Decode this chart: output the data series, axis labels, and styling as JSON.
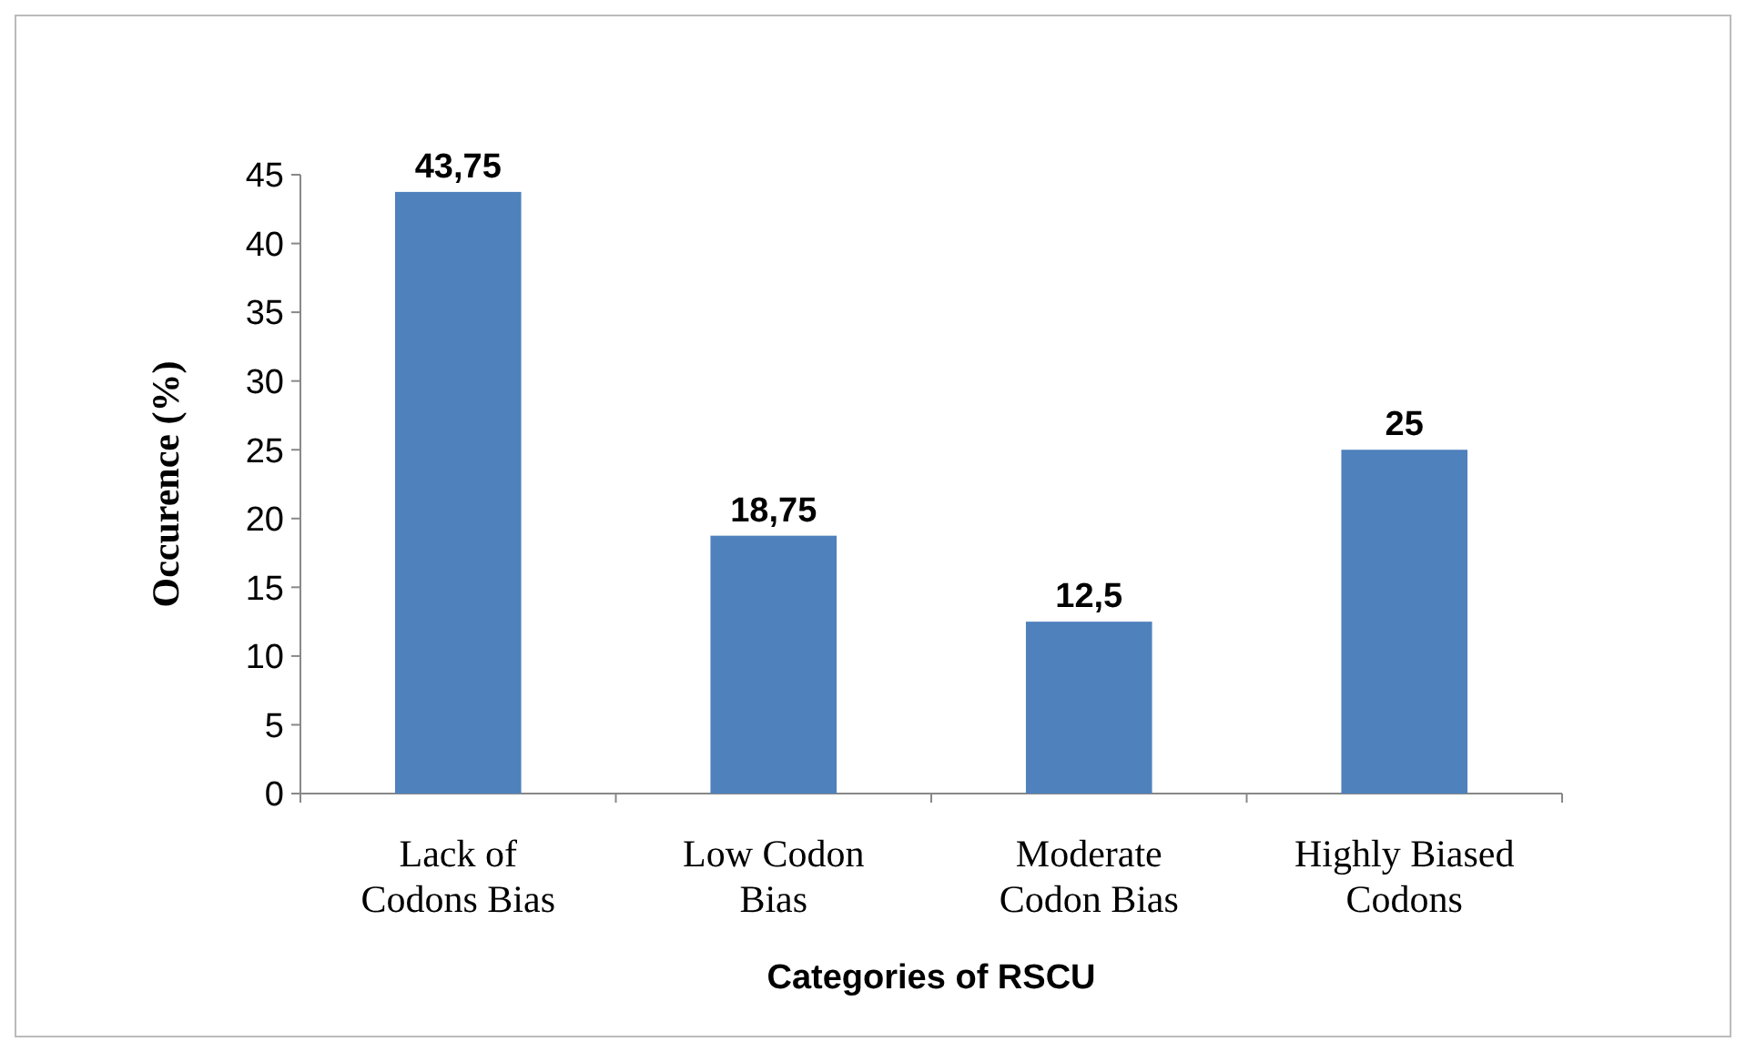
{
  "chart_data": {
    "type": "bar",
    "xlabel": "Categories of RSCU",
    "ylabel": "Occurence (%)",
    "categories": [
      "Lack of Codons Bias",
      "Low Codon Bias",
      "Moderate Codon Bias",
      "Highly Biased Codons"
    ],
    "values": [
      43.75,
      18.75,
      12.5,
      25
    ],
    "value_labels": [
      "43,75",
      "18,75",
      "12,5",
      "25"
    ],
    "color": "#4f81bd",
    "ylim": [
      0,
      45
    ],
    "yticks": [
      0,
      5,
      10,
      15,
      20,
      25,
      30,
      35,
      40,
      45
    ],
    "grid": false
  }
}
